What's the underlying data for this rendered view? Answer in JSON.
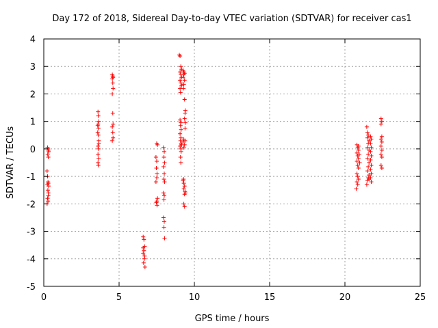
{
  "chart_data": {
    "type": "scatter",
    "title": "Day 172 of 2018, Sidereal Day-to-day VTEC variation (SDTVAR) for receiver cas1",
    "xlabel": "GPS time / hours",
    "ylabel": "SDTVAR / TECUs",
    "xlim": [
      0,
      25
    ],
    "ylim": [
      -5,
      4
    ],
    "xticks": [
      0,
      5,
      10,
      15,
      20,
      25
    ],
    "yticks": [
      -5,
      -4,
      -3,
      -2,
      -1,
      0,
      1,
      2,
      3,
      4
    ],
    "grid": true,
    "marker": "+",
    "color": "#ff0000",
    "series": [
      {
        "name": "cas1",
        "points": [
          [
            0.25,
            0.05
          ],
          [
            0.28,
            0.0
          ],
          [
            0.3,
            -0.05
          ],
          [
            0.32,
            -0.1
          ],
          [
            0.26,
            -0.2
          ],
          [
            0.3,
            -0.3
          ],
          [
            0.22,
            -0.8
          ],
          [
            0.25,
            -1.0
          ],
          [
            0.28,
            -1.2
          ],
          [
            0.3,
            -1.25
          ],
          [
            0.24,
            -1.3
          ],
          [
            0.32,
            -1.35
          ],
          [
            0.27,
            -1.5
          ],
          [
            0.3,
            -1.6
          ],
          [
            0.25,
            -1.8
          ],
          [
            0.28,
            -1.9
          ],
          [
            0.22,
            -2.0
          ],
          [
            0.3,
            -1.7
          ],
          [
            3.6,
            1.35
          ],
          [
            3.62,
            1.2
          ],
          [
            3.65,
            1.0
          ],
          [
            3.6,
            0.9
          ],
          [
            3.63,
            0.75
          ],
          [
            3.58,
            0.6
          ],
          [
            3.62,
            0.5
          ],
          [
            3.65,
            0.3
          ],
          [
            3.6,
            0.1
          ],
          [
            3.63,
            0.0
          ],
          [
            3.6,
            -0.2
          ],
          [
            3.64,
            -0.35
          ],
          [
            3.6,
            -0.5
          ],
          [
            3.62,
            -0.6
          ],
          [
            3.66,
            0.2
          ],
          [
            3.58,
            0.85
          ],
          [
            4.55,
            2.7
          ],
          [
            4.58,
            2.65
          ],
          [
            4.6,
            2.6
          ],
          [
            4.55,
            2.55
          ],
          [
            4.58,
            2.4
          ],
          [
            4.6,
            2.2
          ],
          [
            4.55,
            2.0
          ],
          [
            4.58,
            1.3
          ],
          [
            4.6,
            0.9
          ],
          [
            4.55,
            0.8
          ],
          [
            4.58,
            0.6
          ],
          [
            4.6,
            0.4
          ],
          [
            4.55,
            0.3
          ],
          [
            6.6,
            -3.2
          ],
          [
            6.65,
            -3.3
          ],
          [
            6.7,
            -3.55
          ],
          [
            6.65,
            -3.7
          ],
          [
            6.6,
            -3.8
          ],
          [
            6.7,
            -3.9
          ],
          [
            6.68,
            -4.0
          ],
          [
            6.63,
            -4.15
          ],
          [
            6.72,
            -4.3
          ],
          [
            6.6,
            -3.6
          ],
          [
            7.5,
            0.2
          ],
          [
            7.55,
            0.15
          ],
          [
            7.45,
            -0.3
          ],
          [
            7.5,
            -0.45
          ],
          [
            7.48,
            -0.7
          ],
          [
            7.52,
            -0.9
          ],
          [
            7.5,
            -1.05
          ],
          [
            7.45,
            -1.2
          ],
          [
            7.55,
            -1.8
          ],
          [
            7.48,
            -1.95
          ],
          [
            7.52,
            -2.05
          ],
          [
            7.5,
            -1.9
          ],
          [
            7.95,
            0.05
          ],
          [
            8.0,
            -0.1
          ],
          [
            7.98,
            -0.3
          ],
          [
            8.02,
            -0.5
          ],
          [
            7.95,
            -0.65
          ],
          [
            8.0,
            -0.9
          ],
          [
            7.98,
            -1.1
          ],
          [
            8.02,
            -1.2
          ],
          [
            7.95,
            -1.6
          ],
          [
            8.0,
            -1.7
          ],
          [
            7.98,
            -1.85
          ],
          [
            7.95,
            -2.5
          ],
          [
            8.0,
            -2.65
          ],
          [
            7.98,
            -2.85
          ],
          [
            8.02,
            -3.25
          ],
          [
            9.0,
            3.42
          ],
          [
            9.05,
            3.38
          ],
          [
            9.1,
            3.0
          ],
          [
            9.15,
            2.9
          ],
          [
            9.05,
            2.8
          ],
          [
            9.1,
            2.7
          ],
          [
            9.15,
            2.6
          ],
          [
            9.05,
            2.5
          ],
          [
            9.1,
            2.4
          ],
          [
            9.15,
            2.3
          ],
          [
            9.05,
            2.2
          ],
          [
            9.08,
            2.05
          ],
          [
            9.05,
            1.05
          ],
          [
            9.1,
            0.95
          ],
          [
            9.08,
            0.85
          ],
          [
            9.12,
            0.7
          ],
          [
            9.05,
            0.55
          ],
          [
            9.1,
            0.4
          ],
          [
            9.08,
            0.3
          ],
          [
            9.12,
            0.2
          ],
          [
            9.05,
            0.1
          ],
          [
            9.1,
            0.0
          ],
          [
            9.15,
            0.15
          ],
          [
            9.12,
            -0.1
          ],
          [
            9.08,
            -0.3
          ],
          [
            9.1,
            -0.5
          ],
          [
            9.25,
            2.85
          ],
          [
            9.3,
            2.8
          ],
          [
            9.35,
            2.75
          ],
          [
            9.3,
            2.7
          ],
          [
            9.25,
            2.6
          ],
          [
            9.35,
            2.5
          ],
          [
            9.3,
            2.35
          ],
          [
            9.28,
            2.2
          ],
          [
            9.35,
            1.8
          ],
          [
            9.4,
            1.4
          ],
          [
            9.38,
            1.3
          ],
          [
            9.35,
            1.1
          ],
          [
            9.4,
            0.95
          ],
          [
            9.38,
            0.75
          ],
          [
            9.3,
            0.35
          ],
          [
            9.25,
            0.25
          ],
          [
            9.35,
            0.15
          ],
          [
            9.3,
            0.05
          ],
          [
            9.38,
            0.3
          ],
          [
            9.25,
            -1.15
          ],
          [
            9.3,
            -1.25
          ],
          [
            9.35,
            -1.35
          ],
          [
            9.3,
            -1.45
          ],
          [
            9.38,
            -1.55
          ],
          [
            9.4,
            -1.6
          ],
          [
            9.35,
            -1.65
          ],
          [
            9.3,
            -2.0
          ],
          [
            9.35,
            -2.1
          ],
          [
            9.28,
            -1.1
          ],
          [
            20.8,
            0.15
          ],
          [
            20.85,
            0.05
          ],
          [
            20.9,
            -0.05
          ],
          [
            20.8,
            -0.15
          ],
          [
            20.85,
            -0.25
          ],
          [
            20.9,
            -0.35
          ],
          [
            20.8,
            -0.45
          ],
          [
            20.85,
            -0.6
          ],
          [
            20.9,
            -0.7
          ],
          [
            20.8,
            -0.9
          ],
          [
            20.85,
            -1.0
          ],
          [
            20.9,
            -1.1
          ],
          [
            20.8,
            -1.2
          ],
          [
            20.85,
            -1.3
          ],
          [
            20.75,
            -1.45
          ],
          [
            20.9,
            0.1
          ],
          [
            20.95,
            -0.2
          ],
          [
            20.98,
            -0.5
          ],
          [
            21.45,
            0.8
          ],
          [
            21.5,
            0.6
          ],
          [
            21.55,
            0.5
          ],
          [
            21.5,
            0.4
          ],
          [
            21.6,
            0.3
          ],
          [
            21.55,
            0.2
          ],
          [
            21.5,
            0.05
          ],
          [
            21.6,
            -0.05
          ],
          [
            21.55,
            -0.2
          ],
          [
            21.5,
            -0.35
          ],
          [
            21.6,
            -0.5
          ],
          [
            21.55,
            -0.65
          ],
          [
            21.5,
            -0.8
          ],
          [
            21.6,
            -0.95
          ],
          [
            21.55,
            -1.05
          ],
          [
            21.5,
            -1.15
          ],
          [
            21.45,
            -1.3
          ],
          [
            21.6,
            -1.1
          ],
          [
            21.7,
            0.45
          ],
          [
            21.75,
            0.35
          ],
          [
            21.7,
            0.2
          ],
          [
            21.75,
            0.05
          ],
          [
            21.7,
            -0.1
          ],
          [
            21.75,
            -0.25
          ],
          [
            21.7,
            -0.4
          ],
          [
            21.75,
            -0.6
          ],
          [
            21.7,
            -0.75
          ],
          [
            21.75,
            -0.9
          ],
          [
            21.7,
            -1.05
          ],
          [
            21.75,
            -1.2
          ],
          [
            22.4,
            1.1
          ],
          [
            22.45,
            1.0
          ],
          [
            22.4,
            0.9
          ],
          [
            22.45,
            0.45
          ],
          [
            22.4,
            0.35
          ],
          [
            22.45,
            0.25
          ],
          [
            22.4,
            0.1
          ],
          [
            22.45,
            -0.05
          ],
          [
            22.4,
            -0.2
          ],
          [
            22.45,
            -0.3
          ],
          [
            22.4,
            -0.6
          ],
          [
            22.45,
            -0.7
          ]
        ]
      }
    ]
  }
}
